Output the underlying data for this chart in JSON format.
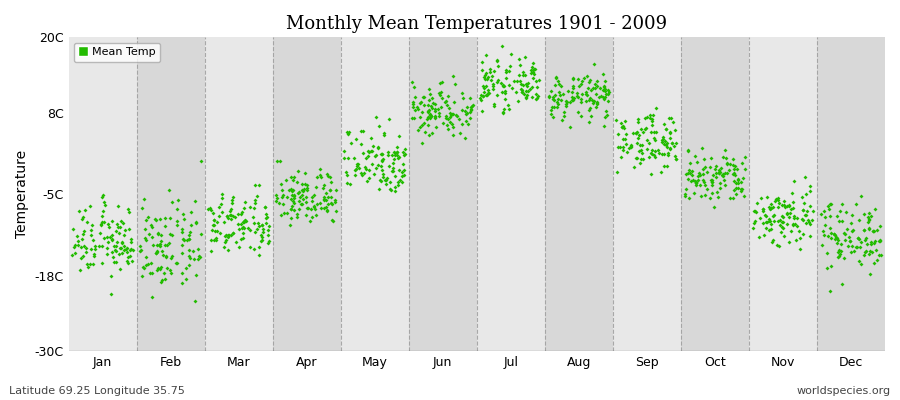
{
  "title": "Monthly Mean Temperatures 1901 - 2009",
  "ylabel": "Temperature",
  "xlabel_bottom_left": "Latitude 69.25 Longitude 35.75",
  "xlabel_bottom_right": "worldspecies.org",
  "legend_label": "Mean Temp",
  "ylim": [
    -30,
    20
  ],
  "yticks": [
    -30,
    -18,
    -5,
    8,
    20
  ],
  "ytick_labels": [
    "-30C",
    "-18C",
    "-5C",
    "8C",
    "20C"
  ],
  "months": [
    "Jan",
    "Feb",
    "Mar",
    "Apr",
    "May",
    "Jun",
    "Jul",
    "Aug",
    "Sep",
    "Oct",
    "Nov",
    "Dec"
  ],
  "dot_color": "#22bb00",
  "plot_bg_color": "#e8e8e8",
  "col_bg_odd": "#e8e8e8",
  "col_bg_even": "#d8d8d8",
  "fig_bg_color": "#ffffff",
  "dashed_line_color": "#999999",
  "n_years": 109,
  "monthly_means": [
    -12.5,
    -13.5,
    -10.0,
    -5.5,
    0.5,
    8.5,
    12.5,
    10.5,
    3.5,
    -2.5,
    -8.5,
    -11.5
  ],
  "monthly_stds": [
    2.8,
    3.5,
    2.5,
    2.2,
    2.8,
    2.2,
    1.8,
    1.8,
    2.2,
    2.2,
    2.5,
    2.8
  ]
}
